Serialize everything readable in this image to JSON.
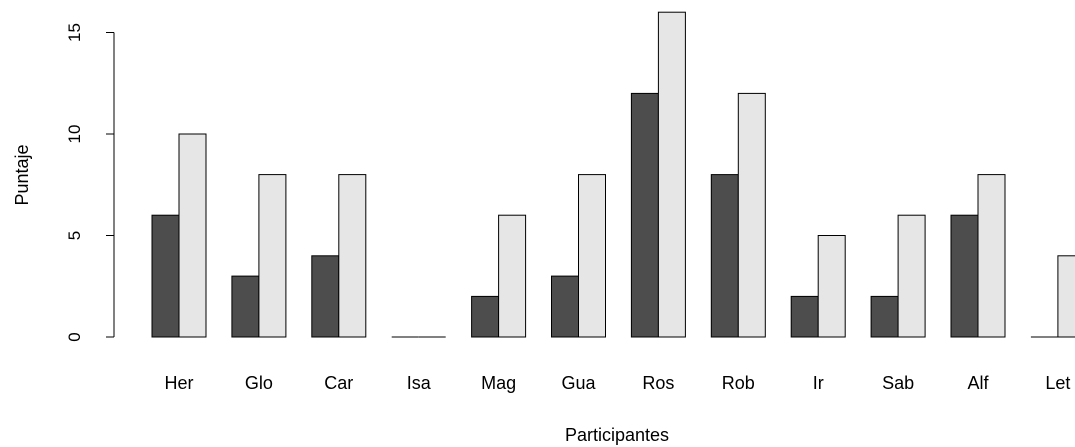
{
  "chart_data": {
    "type": "bar",
    "title": "",
    "xlabel": "Participantes",
    "ylabel": "Puntaje",
    "categories": [
      "Her",
      "Glo",
      "Car",
      "Isa",
      "Mag",
      "Gua",
      "Ros",
      "Rob",
      "Ir",
      "Sab",
      "Alf",
      "Let"
    ],
    "series": [
      {
        "values": [
          6,
          3,
          4,
          0,
          2,
          3,
          12,
          8,
          2,
          2,
          6,
          0
        ],
        "color": "#4d4d4d"
      },
      {
        "values": [
          10,
          8,
          8,
          0,
          6,
          8,
          16,
          12,
          5,
          6,
          8,
          4
        ],
        "color": "#e6e6e6"
      }
    ],
    "ylim": [
      0,
      16
    ],
    "yticks": [
      0,
      5,
      10,
      15
    ],
    "grid": false,
    "legend": "none"
  }
}
